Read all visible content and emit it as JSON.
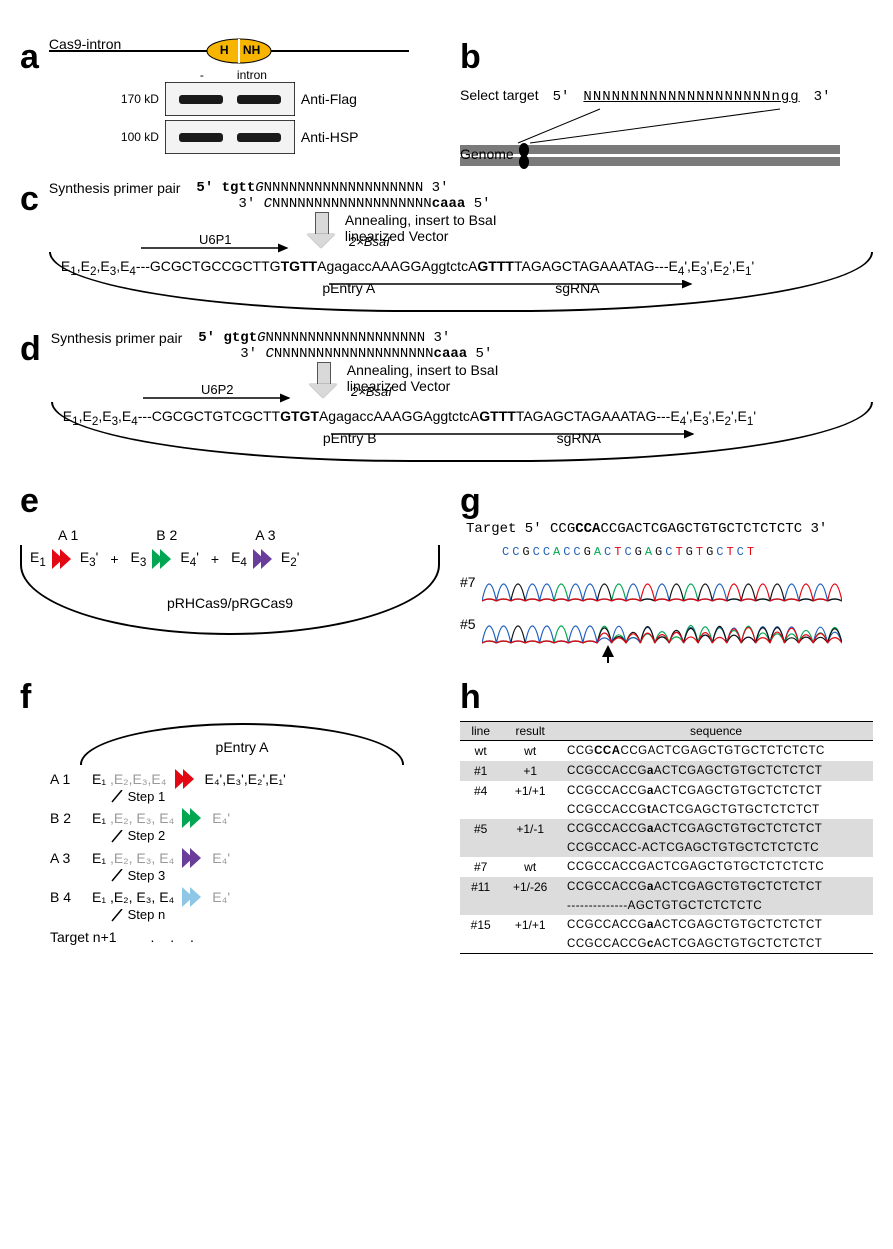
{
  "a": {
    "label": "a",
    "title": "Cas9-intron",
    "hnh_left": "H",
    "hnh_right": "NH",
    "lane_left": "-",
    "lane_right": "intron",
    "mw1": "170 kD",
    "mw2": "100 kD",
    "ab1": "Anti-Flag",
    "ab2": "Anti-HSP"
  },
  "b": {
    "label": "b",
    "select": "Select target",
    "five": "5'",
    "three": "3'",
    "seq": "NNNNNNNNNNNNNNNNNNNN",
    "pam": "ngg",
    "genome": "Genome"
  },
  "c": {
    "label": "c",
    "title": "Synthesis primer pair",
    "p1": "5' tgttGNNNNNNNNNNNNNNNNNNN 3'",
    "p2": "3' CNNNNNNNNNNNNNNNNNNNcaaa 5'",
    "note1": "Annealing, insert to BsaI",
    "note2": "linearized Vector",
    "u6": "U6P1",
    "bsa": "2×BsaI",
    "left_e": "E₁,E₂,E₃,E₄",
    "right_e": "E₄',E₃',E₂',E₁'",
    "core_left": "---GCGCTGCCGCTTG",
    "core_bold1": "TGTT",
    "core_mid1": "AgagaccAAAGGAggtctcA",
    "core_bold2": "GTTT",
    "core_right": "TAGAGCTAGAAATAG---",
    "name": "pEntry A",
    "sg": "sgRNA"
  },
  "d": {
    "label": "d",
    "title": "Synthesis primer pair",
    "p1": "5' gtgtGNNNNNNNNNNNNNNNNNNN 3'",
    "p2": "3' CNNNNNNNNNNNNNNNNNNNcaaa 5'",
    "note1": "Annealing, insert to BsaI",
    "note2": "linearized Vector",
    "u6": "U6P2",
    "bsa": "2×BsaI",
    "left_e": "E₁,E₂,E₃,E₄",
    "right_e": "E₄',E₃',E₂',E₁'",
    "core_left": "---CGCGCTGTCGCTT",
    "core_bold1": "GTGT",
    "core_mid1": "AgagaccAAAGGAggtctcA",
    "core_bold2": "GTTT",
    "core_right": "TAGAGCTAGAAATAG---",
    "name": "pEntry B",
    "sg": "sgRNA"
  },
  "e": {
    "label": "e",
    "a1": "A 1",
    "b2": "B 2",
    "a3": "A 3",
    "e_l1": "E₁",
    "e_r1": "E₃'",
    "e_l2": "E₃",
    "e_r2": "E₄'",
    "e_l3": "E₄",
    "e_r3": "E₂'",
    "plus": "+",
    "name": "pRHCas9/pRGCas9"
  },
  "f": {
    "label": "f",
    "top": "pEntry A",
    "rows": [
      {
        "tag": "A 1",
        "left": "E₁",
        "gray": " ,E₂,E₃,E₄",
        "right": "E₄',E₃',E₂',E₁'",
        "right_bold": "",
        "color": "red",
        "step": "Step 1"
      },
      {
        "tag": "B 2",
        "left": "E₁",
        "gray": " ,E₂, E₃, E₄",
        "right": "E₄'",
        "color": "green",
        "step": "Step 2"
      },
      {
        "tag": "A 3",
        "left": "E₁",
        "gray": " ,E₂, E₃, E₄",
        "right": "E₄'",
        "color": "purple",
        "step": "Step 3"
      },
      {
        "tag": "B 4",
        "left": "E₁ ,E₂, E₃, E₄",
        "gray": "",
        "right": "E₄'",
        "color": "blue",
        "step": "Step n"
      }
    ],
    "last": "Target n+1",
    "dots": ". . ."
  },
  "g": {
    "label": "g",
    "target_label": "Target 5'",
    "target_seq_pre": "CCG",
    "target_seq_bold": "CCA",
    "target_seq_post": "CCGACTCGAGCTGTGCTCTCTCTC 3'",
    "trace": "C C G C C A C C G A C T C G A G C T G T G C T C T",
    "s1": "#7",
    "s2": "#5"
  },
  "h": {
    "label": "h",
    "headers": [
      "line",
      "result",
      "sequence"
    ],
    "rows": [
      {
        "line": "wt",
        "result": "wt",
        "seq": [
          "CCG<b>CCA</b>CCGACTCGAGCTGTGCTCTCTCTC"
        ],
        "shade": false
      },
      {
        "line": "#1",
        "result": "+1",
        "seq": [
          "CCGCCACCG<b>a</b>ACTCGAGCTGTGCTCTCTCT"
        ],
        "shade": true
      },
      {
        "line": "#4",
        "result": "+1/+1",
        "seq": [
          "CCGCCACCG<b>a</b>ACTCGAGCTGTGCTCTCTCT",
          "CCGCCACCG<b>t</b>ACTCGAGCTGTGCTCTCTCT"
        ],
        "shade": false
      },
      {
        "line": "#5",
        "result": "+1/-1",
        "seq": [
          "CCGCCACCG<b>a</b>ACTCGAGCTGTGCTCTCTCT",
          "CCGCCACC-ACTCGAGCTGTGCTCTCTCTC"
        ],
        "shade": true
      },
      {
        "line": "#7",
        "result": "wt",
        "seq": [
          "CCGCCACCGACTCGAGCTGTGCTCTCTCTC"
        ],
        "shade": false
      },
      {
        "line": "#11",
        "result": "+1/-26",
        "seq": [
          "CCGCCACCG<b>a</b>ACTCGAGCTGTGCTCTCTCT",
          "--------------AGCTGTGCTCTCTCTC"
        ],
        "shade": true
      },
      {
        "line": "#15",
        "result": "+1/+1",
        "seq": [
          "CCGCCACCG<b>a</b>ACTCGAGCTGTGCTCTCTCT",
          "CCGCCACCG<b>c</b>ACTCGAGCTGTGCTCTCTCT"
        ],
        "shade": false
      }
    ]
  },
  "colors": {
    "gel": "#3a3a3a",
    "gelband": "#1a1a1a",
    "oval": "#f7b500",
    "genome": "#7a7a7a",
    "centromere": "#000",
    "traceA": "#00a651",
    "traceC": "#1f5fbf",
    "traceG": "#111",
    "traceT": "#e30613"
  }
}
